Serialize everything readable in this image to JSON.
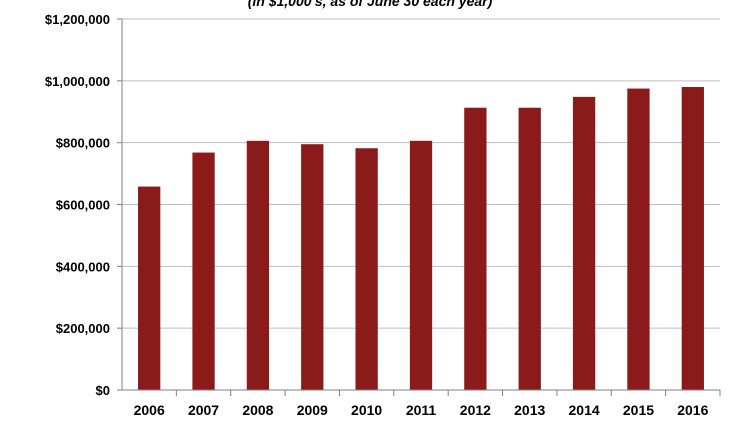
{
  "chart_data": {
    "type": "bar",
    "title": "",
    "subtitle": "(in $1,000's, as of June 30 each year)",
    "xlabel": "",
    "ylabel": "",
    "categories": [
      "2006",
      "2007",
      "2008",
      "2009",
      "2010",
      "2011",
      "2012",
      "2013",
      "2014",
      "2015",
      "2016"
    ],
    "values": [
      658000,
      768000,
      806000,
      795000,
      782000,
      806000,
      913000,
      913000,
      948000,
      975000,
      980000
    ],
    "ylim": [
      0,
      1200000
    ],
    "yticks": [
      0,
      200000,
      400000,
      600000,
      800000,
      1000000,
      1200000
    ],
    "ytick_labels": [
      "$0",
      "$200,000",
      "$400,000",
      "$600,000",
      "$800,000",
      "$1,000,000",
      "$1,200,000"
    ],
    "grid": true,
    "legend": "none",
    "bar_color": "#8b1a1a"
  }
}
